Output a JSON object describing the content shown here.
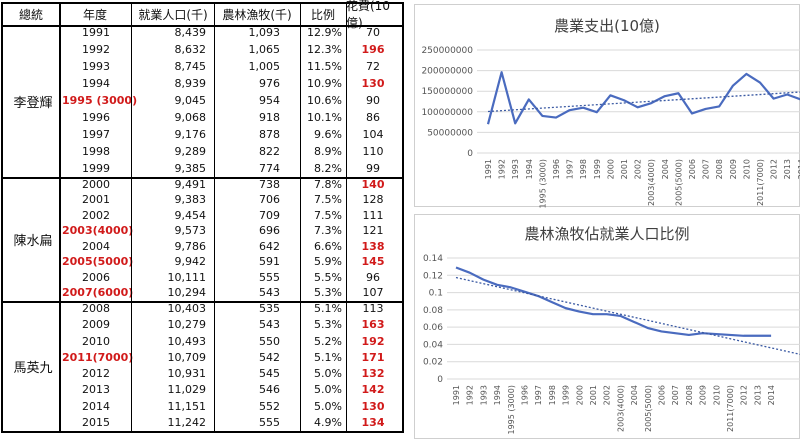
{
  "table": {
    "headers": {
      "president": "總統",
      "year": "年度",
      "employed": "就業人口(千)",
      "agri": "農林漁牧(千)",
      "ratio": "比例",
      "spending": "花費(10億)"
    },
    "groups": [
      {
        "president": "李登輝",
        "rows": [
          {
            "year": "1991",
            "employed": "8,439",
            "agri": "1,093",
            "ratio": "12.9%",
            "spending": "70",
            "year_red": false,
            "spending_red": false
          },
          {
            "year": "1992",
            "employed": "8,632",
            "agri": "1,065",
            "ratio": "12.3%",
            "spending": "196",
            "year_red": false,
            "spending_red": true
          },
          {
            "year": "1993",
            "employed": "8,745",
            "agri": "1,005",
            "ratio": "11.5%",
            "spending": "72",
            "year_red": false,
            "spending_red": false
          },
          {
            "year": "1994",
            "employed": "8,939",
            "agri": "976",
            "ratio": "10.9%",
            "spending": "130",
            "year_red": false,
            "spending_red": true
          },
          {
            "year": "1995 (3000)",
            "employed": "9,045",
            "agri": "954",
            "ratio": "10.6%",
            "spending": "90",
            "year_red": true,
            "spending_red": false
          },
          {
            "year": "1996",
            "employed": "9,068",
            "agri": "918",
            "ratio": "10.1%",
            "spending": "86",
            "year_red": false,
            "spending_red": false
          },
          {
            "year": "1997",
            "employed": "9,176",
            "agri": "878",
            "ratio": "9.6%",
            "spending": "104",
            "year_red": false,
            "spending_red": false
          },
          {
            "year": "1998",
            "employed": "9,289",
            "agri": "822",
            "ratio": "8.9%",
            "spending": "110",
            "year_red": false,
            "spending_red": false
          },
          {
            "year": "1999",
            "employed": "9,385",
            "agri": "774",
            "ratio": "8.2%",
            "spending": "99",
            "year_red": false,
            "spending_red": false
          }
        ]
      },
      {
        "president": "陳水扁",
        "rows": [
          {
            "year": "2000",
            "employed": "9,491",
            "agri": "738",
            "ratio": "7.8%",
            "spending": "140",
            "year_red": false,
            "spending_red": true
          },
          {
            "year": "2001",
            "employed": "9,383",
            "agri": "706",
            "ratio": "7.5%",
            "spending": "128",
            "year_red": false,
            "spending_red": false
          },
          {
            "year": "2002",
            "employed": "9,454",
            "agri": "709",
            "ratio": "7.5%",
            "spending": "111",
            "year_red": false,
            "spending_red": false
          },
          {
            "year": "2003(4000)",
            "employed": "9,573",
            "agri": "696",
            "ratio": "7.3%",
            "spending": "121",
            "year_red": true,
            "spending_red": false
          },
          {
            "year": "2004",
            "employed": "9,786",
            "agri": "642",
            "ratio": "6.6%",
            "spending": "138",
            "year_red": false,
            "spending_red": true
          },
          {
            "year": "2005(5000)",
            "employed": "9,942",
            "agri": "591",
            "ratio": "5.9%",
            "spending": "145",
            "year_red": true,
            "spending_red": true
          },
          {
            "year": "2006",
            "employed": "10,111",
            "agri": "555",
            "ratio": "5.5%",
            "spending": "96",
            "year_red": false,
            "spending_red": false
          },
          {
            "year": "2007(6000)",
            "employed": "10,294",
            "agri": "543",
            "ratio": "5.3%",
            "spending": "107",
            "year_red": true,
            "spending_red": false
          }
        ]
      },
      {
        "president": "馬英九",
        "rows": [
          {
            "year": "2008",
            "employed": "10,403",
            "agri": "535",
            "ratio": "5.1%",
            "spending": "113",
            "year_red": false,
            "spending_red": false
          },
          {
            "year": "2009",
            "employed": "10,279",
            "agri": "543",
            "ratio": "5.3%",
            "spending": "163",
            "year_red": false,
            "spending_red": true
          },
          {
            "year": "2010",
            "employed": "10,493",
            "agri": "550",
            "ratio": "5.2%",
            "spending": "192",
            "year_red": false,
            "spending_red": true
          },
          {
            "year": "2011(7000)",
            "employed": "10,709",
            "agri": "542",
            "ratio": "5.1%",
            "spending": "171",
            "year_red": true,
            "spending_red": true
          },
          {
            "year": "2012",
            "employed": "10,931",
            "agri": "545",
            "ratio": "5.0%",
            "spending": "132",
            "year_red": false,
            "spending_red": true
          },
          {
            "year": "2013",
            "employed": "11,029",
            "agri": "546",
            "ratio": "5.0%",
            "spending": "142",
            "year_red": false,
            "spending_red": true
          },
          {
            "year": "2014",
            "employed": "11,151",
            "agri": "552",
            "ratio": "5.0%",
            "spending": "130",
            "year_red": false,
            "spending_red": true
          },
          {
            "year": "2015",
            "employed": "11,242",
            "agri": "555",
            "ratio": "4.9%",
            "spending": "134",
            "year_red": false,
            "spending_red": true
          }
        ]
      }
    ]
  },
  "colors": {
    "highlight": "#d11a1a",
    "series": "#4a6bbf",
    "trend": "#3b5aa3",
    "grid": "#d9d9d9"
  },
  "chart_data": [
    {
      "type": "line",
      "title": "農業支出(10億)",
      "categories": [
        "1991",
        "1992",
        "1993",
        "1994",
        "1995 (3000)",
        "1996",
        "1997",
        "1998",
        "1999",
        "2000",
        "2001",
        "2002",
        "2003(4000)",
        "2004",
        "2005(5000)",
        "2006",
        "2007",
        "2008",
        "2009",
        "2010",
        "2011(7000)",
        "2012",
        "2013",
        "2014"
      ],
      "series": [
        {
          "name": "農業支出",
          "values": [
            70000000,
            196000000,
            72000000,
            130000000,
            90000000,
            86000000,
            104000000,
            110000000,
            99000000,
            140000000,
            128000000,
            111000000,
            121000000,
            138000000,
            145000000,
            96000000,
            107000000,
            113000000,
            163000000,
            192000000,
            171000000,
            132000000,
            142000000,
            130000000
          ]
        }
      ],
      "yticks": [
        "0",
        "50000000",
        "100000000",
        "150000000",
        "200000000",
        "250000000"
      ],
      "ylim": [
        0,
        250000000
      ],
      "trendline": "linear",
      "xlabel": "",
      "ylabel": ""
    },
    {
      "type": "line",
      "title": "農林漁牧佔就業人口比例",
      "categories": [
        "1991",
        "1992",
        "1993",
        "1994",
        "1995 (3000)",
        "1996",
        "1997",
        "1998",
        "1999",
        "2000",
        "2001",
        "2002",
        "2003(4000)",
        "2004",
        "2005(5000)",
        "2006",
        "2007",
        "2008",
        "2009",
        "2010",
        "2011(7000)",
        "2012",
        "2013",
        "2014"
      ],
      "series": [
        {
          "name": "比例",
          "values": [
            0.129,
            0.123,
            0.115,
            0.109,
            0.106,
            0.101,
            0.096,
            0.089,
            0.082,
            0.078,
            0.075,
            0.075,
            0.073,
            0.066,
            0.059,
            0.055,
            0.053,
            0.051,
            0.053,
            0.052,
            0.051,
            0.05,
            0.05,
            0.05
          ]
        }
      ],
      "yticks": [
        "0",
        "0.02",
        "0.04",
        "0.06",
        "0.08",
        "0.1",
        "0.12",
        "0.14"
      ],
      "ylim": [
        0,
        0.14
      ],
      "trendline": "linear",
      "xlabel": "",
      "ylabel": ""
    }
  ]
}
